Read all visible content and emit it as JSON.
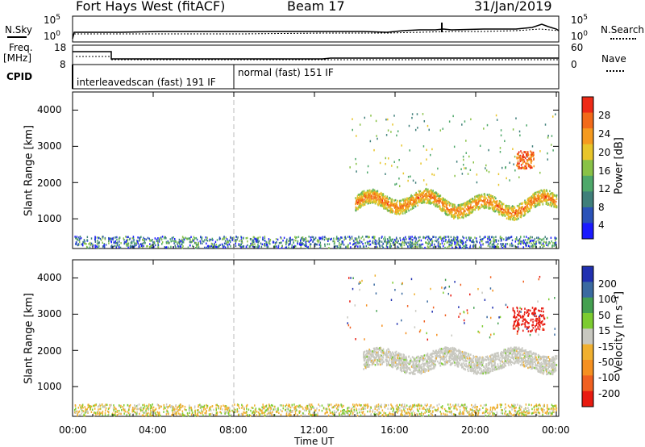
{
  "header": {
    "station": "Fort Hays West (fitACF)",
    "beam": "Beam 17",
    "date": "31/Jan/2019"
  },
  "panels": {
    "nsky_label": "N.Sky",
    "nsky_top": "10^5",
    "nsky_bottom": "10^0",
    "nsearch_top": "10^5",
    "nsearch_bottom": "10^0",
    "nsearch_label": "N.Search",
    "freq_label_1": "Freq.",
    "freq_label_2": "[MHz]",
    "freq_top": "18",
    "freq_bottom": "8",
    "nave_top": "60",
    "nave_bottom": "0",
    "nave_label": "Nave",
    "cpid_label": "CPID",
    "mode1": "interleavedscan (fast) 191 IF",
    "mode2": "normal (fast) 151 IF"
  },
  "chart_data": [
    {
      "type": "heatmap",
      "title": "Power",
      "ylabel": "Slant Range [km]",
      "ylim": [
        180,
        4500
      ],
      "yticks": [
        "1000",
        "2000",
        "3000",
        "4000"
      ],
      "colorbar_label": "Power [dB]",
      "colorbar_ticks": [
        "4",
        "8",
        "12",
        "16",
        "20",
        "24",
        "28"
      ],
      "colorbar_range": [
        0,
        32
      ]
    },
    {
      "type": "heatmap",
      "title": "Velocity",
      "ylabel": "Slant Range [km]",
      "ylim": [
        180,
        4500
      ],
      "yticks": [
        "1000",
        "2000",
        "3000",
        "4000"
      ],
      "colorbar_label": "Velocity [m s⁻¹]",
      "colorbar_ticks": [
        "200",
        "100",
        "50",
        "15",
        "-15",
        "-50",
        "-100",
        "-200"
      ]
    }
  ],
  "xaxis": {
    "label": "Time UT",
    "ticks": [
      "00:00",
      "04:00",
      "08:00",
      "12:00",
      "16:00",
      "20:00",
      "00:00"
    ]
  }
}
